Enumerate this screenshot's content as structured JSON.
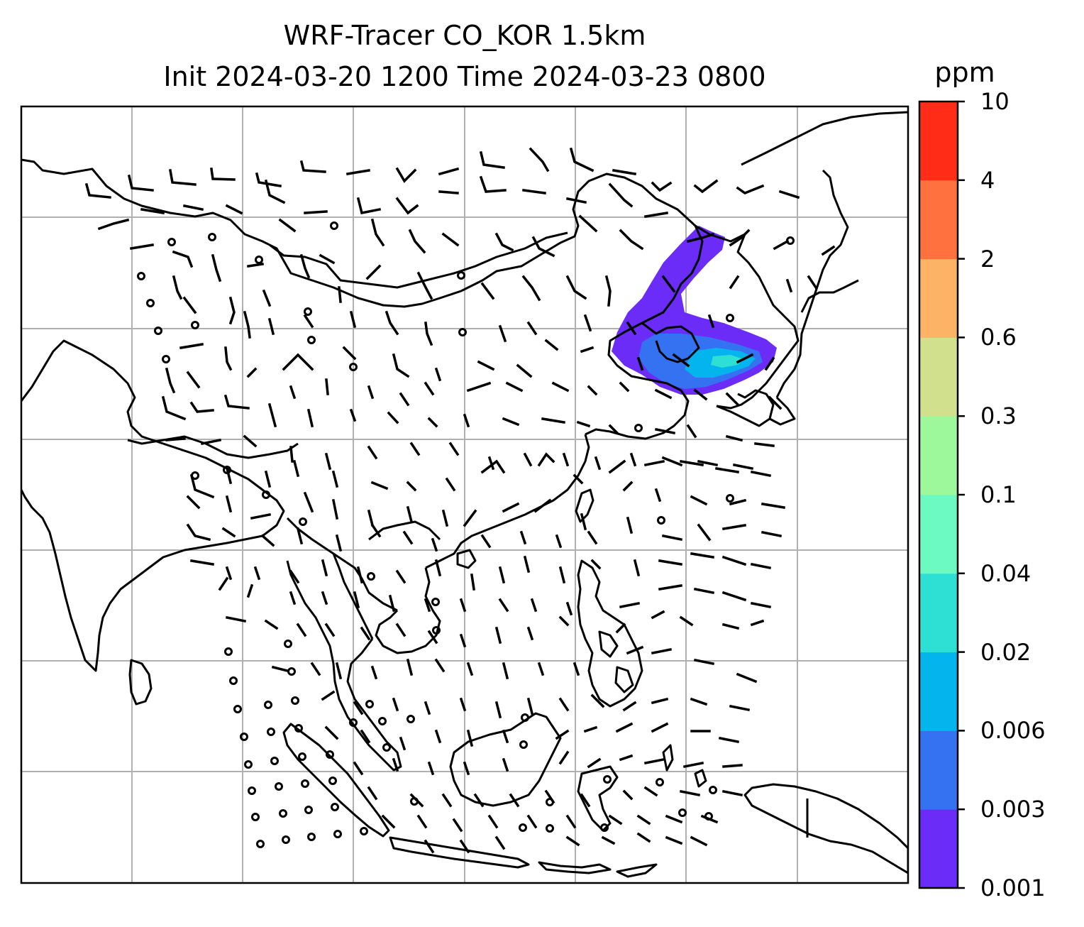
{
  "map": {
    "title_line1": "WRF-Tracer CO_KOR 1.5km",
    "title_line2": "Init 2024-03-20 1200 Time 2024-03-23 0800",
    "colorbar_unit": "ppm",
    "colorbar_levels": [
      "0.001",
      "0.003",
      "0.006",
      "0.02",
      "0.04",
      "0.1",
      "0.3",
      "0.6",
      "2",
      "4",
      "10"
    ],
    "colorbar_colors": [
      "#6a2cf6",
      "#3572f2",
      "#04b4ec",
      "#2ee0d4",
      "#6cf9c2",
      "#9df89c",
      "#d1e08c",
      "#fdb366",
      "#ff7240",
      "#ff2c18"
    ],
    "plume_colors": {
      "outer": "#6a2cf6",
      "middle": "#3572f2",
      "inner": "#04b4ec",
      "core": "#2ee0d4"
    },
    "wind_barbs": "black",
    "gridlines": "gray",
    "coastlines": "black"
  }
}
